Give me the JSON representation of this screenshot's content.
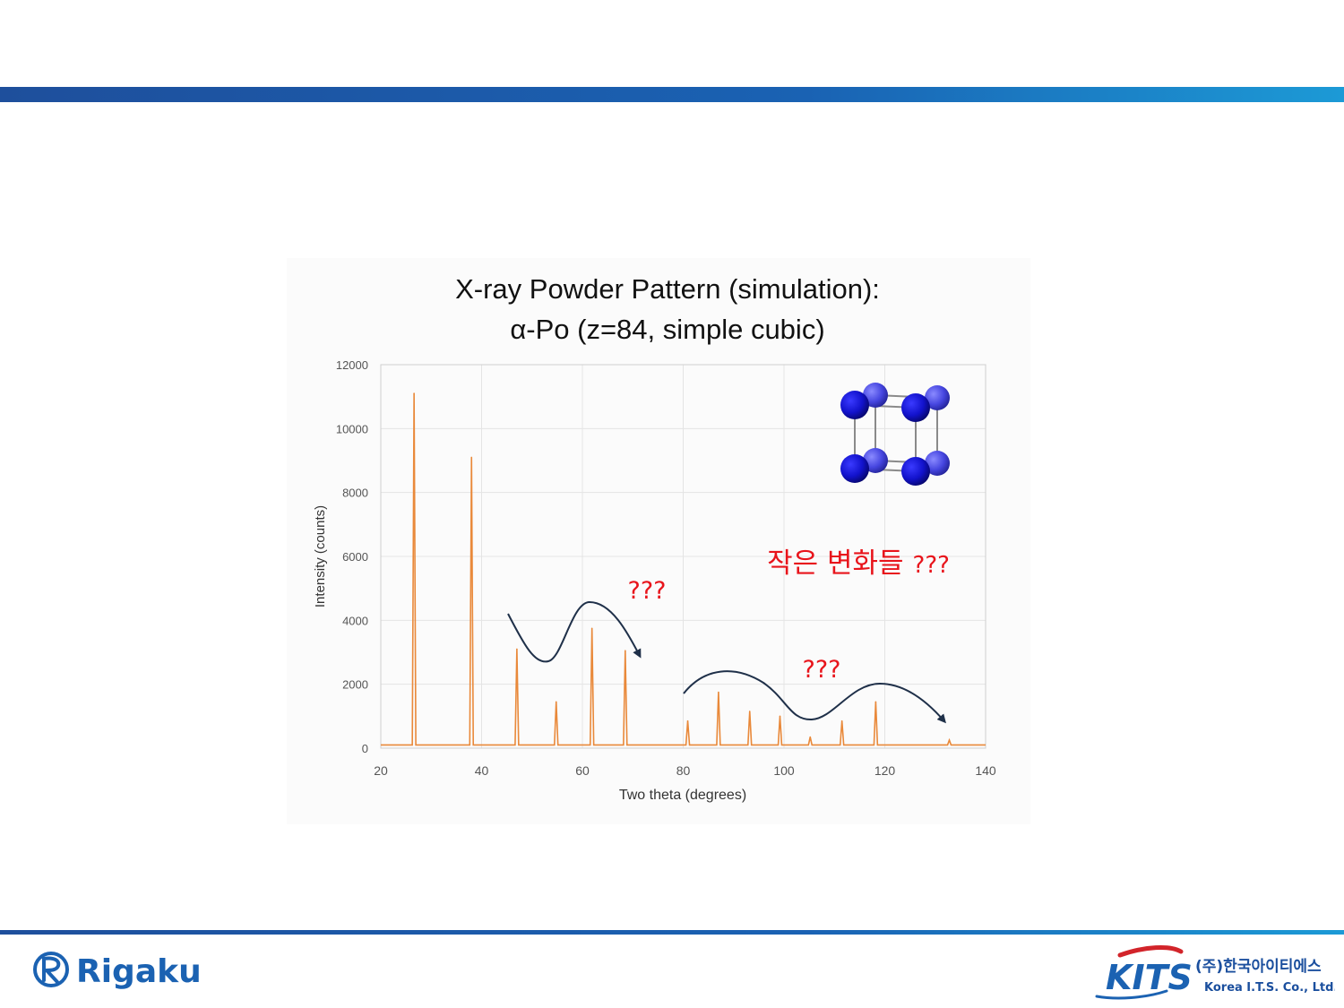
{
  "chart_data": {
    "type": "line",
    "title_line1": "X-ray Powder Pattern (simulation):",
    "title_line2": "α-Po (z=84, simple cubic)",
    "xlabel": "Two theta (degrees)",
    "ylabel": "Intensity (counts)",
    "xlim": [
      20,
      140
    ],
    "ylim": [
      0,
      12000
    ],
    "xticks": [
      "20",
      "40",
      "60",
      "80",
      "100",
      "120",
      "140"
    ],
    "yticks": [
      "0",
      "2000",
      "4000",
      "6000",
      "8000",
      "10000",
      "12000"
    ],
    "grid": true,
    "baseline": 100,
    "series": [
      {
        "color": "#e9893a",
        "peaks": [
          {
            "x": 26.6,
            "y": 11100
          },
          {
            "x": 38.0,
            "y": 9100
          },
          {
            "x": 47.0,
            "y": 3100
          },
          {
            "x": 54.8,
            "y": 1450
          },
          {
            "x": 61.9,
            "y": 3750
          },
          {
            "x": 68.5,
            "y": 3050
          },
          {
            "x": 80.9,
            "y": 850
          },
          {
            "x": 87.0,
            "y": 1750
          },
          {
            "x": 93.2,
            "y": 1150
          },
          {
            "x": 99.2,
            "y": 1000
          },
          {
            "x": 105.2,
            "y": 350
          },
          {
            "x": 111.5,
            "y": 850
          },
          {
            "x": 118.2,
            "y": 1450
          },
          {
            "x": 132.8,
            "y": 250
          }
        ]
      }
    ],
    "annotations": {
      "korean_text": "작은 변화들",
      "korean_suffix": "???",
      "q1": "???",
      "q2": "???"
    }
  },
  "colors": {
    "peak": "#e9893a",
    "annotation": "#e8141b",
    "arrow": "#1f3049",
    "brand_blue": "#1e4f9c",
    "brand_cyan": "#1c9ad6",
    "atom": "#1414c8"
  },
  "branding": {
    "left_logo_text": "Rigaku",
    "right_logo_text": "KITS",
    "right_company_korean": "(주)한국아이티에스",
    "right_company_english": "Korea I.T.S. Co., Ltd."
  },
  "icons": {
    "unit_cell": "simple-cubic-cell-icon",
    "rigaku_mark": "rigaku-logo-icon",
    "kits_mark": "kits-logo-icon"
  }
}
